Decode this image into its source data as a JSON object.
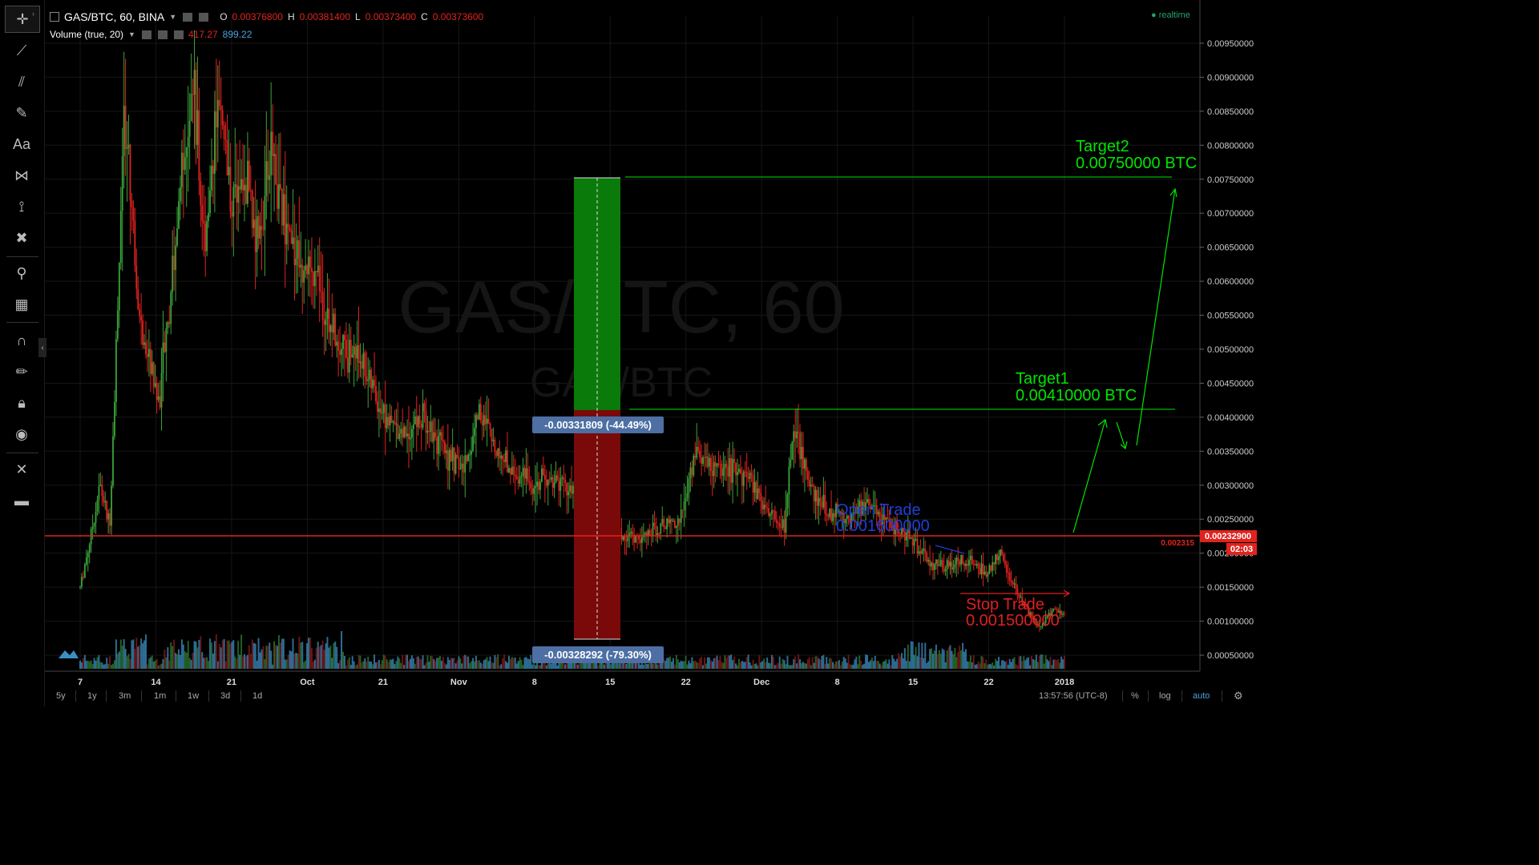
{
  "legend": {
    "symbol": "GAS/BTC, 60, BINA",
    "o_label": "O",
    "o": "0.00376800",
    "h_label": "H",
    "h": "0.00381400",
    "l_label": "L",
    "l": "0.00373400",
    "c_label": "C",
    "c": "0.00373600",
    "volume_label": "Volume (true, 20)",
    "vol1": "417.27",
    "vol2": "899.22",
    "realtime": "realtime"
  },
  "watermark": {
    "big": "GAS/BTC, 60",
    "small": "GAS/BTC"
  },
  "annotations": {
    "target2_label": "Target2",
    "target2_value": "0.00750000 BTC",
    "target1_label": "Target1",
    "target1_value": "0.00410000 BTC",
    "open_label": "Open Trade",
    "open_value": "0.001600000",
    "stop_label": "Stop Trade",
    "stop_value": "0.001500000",
    "measure_top": "-0.00331809 (-44.49%)",
    "measure_bottom": "-0.00328292 (-79.30%)"
  },
  "price_axis": {
    "ticks": [
      "0.00950000",
      "0.00900000",
      "0.00850000",
      "0.00800000",
      "0.00750000",
      "0.00700000",
      "0.00650000",
      "0.00600000",
      "0.00550000",
      "0.00500000",
      "0.00450000",
      "0.00400000",
      "0.00350000",
      "0.00300000",
      "0.00250000",
      "0.00200000",
      "0.00150000",
      "0.00100000",
      "0.00050000"
    ],
    "current_price": "0.00232900",
    "countdown": "02:03",
    "line_value": "0.002315"
  },
  "time_axis": {
    "labels": [
      "7",
      "14",
      "21",
      "Oct",
      "21",
      "Nov",
      "8",
      "15",
      "22",
      "Dec",
      "8",
      "15",
      "22",
      "2018"
    ]
  },
  "bottom_bar": {
    "intervals": [
      "5y",
      "1y",
      "3m",
      "1m",
      "1w",
      "3d",
      "1d"
    ],
    "clock": "13:57:56 (UTC-8)",
    "pct": "%",
    "log": "log",
    "auto": "auto"
  },
  "toolbar": {
    "icons": [
      "crosshair-icon",
      "trend-line-icon",
      "pitchfork-icon",
      "brush-icon",
      "text-icon",
      "pattern-icon",
      "measure-icon",
      "remove-icon",
      "zoom-icon",
      "ruler-icon",
      "magnet-icon",
      "pencil-lock-icon",
      "lock-icon",
      "eye-icon",
      "settings-icon",
      "trash-icon"
    ],
    "text_tool": "Aa"
  },
  "colors": {
    "up": "#3ba33b",
    "down": "#e0231f",
    "accent": "#2962ff",
    "target": "#00e400",
    "open": "#1f3fd6",
    "stop": "#e01f1f",
    "volume": "#3c8fc4",
    "current_line": "#e0231f",
    "grid": "#161616"
  },
  "chart_data": {
    "type": "candlestick",
    "title": "GAS/BTC, 60, BINA",
    "ylim": [
      0.0003,
      0.0099
    ],
    "y_ticks": [
      0.0095,
      0.009,
      0.0085,
      0.008,
      0.0075,
      0.007,
      0.0065,
      0.006,
      0.0055,
      0.005,
      0.0045,
      0.004,
      0.0035,
      0.003,
      0.0025,
      0.002,
      0.0015,
      0.001,
      0.0005
    ],
    "x_labels": [
      "7",
      "14",
      "21",
      "Oct",
      "21",
      "Nov",
      "8",
      "15",
      "22",
      "Dec",
      "8",
      "15",
      "22",
      "2018"
    ],
    "price_path": [
      [
        0,
        0.0015
      ],
      [
        0.01,
        0.0022
      ],
      [
        0.02,
        0.003
      ],
      [
        0.03,
        0.0024
      ],
      [
        0.045,
        0.0085
      ],
      [
        0.06,
        0.0055
      ],
      [
        0.08,
        0.0042
      ],
      [
        0.1,
        0.007
      ],
      [
        0.115,
        0.0092
      ],
      [
        0.125,
        0.0065
      ],
      [
        0.14,
        0.0086
      ],
      [
        0.155,
        0.0072
      ],
      [
        0.17,
        0.0075
      ],
      [
        0.18,
        0.0066
      ],
      [
        0.195,
        0.0079
      ],
      [
        0.21,
        0.0068
      ],
      [
        0.225,
        0.0063
      ],
      [
        0.24,
        0.006
      ],
      [
        0.255,
        0.0054
      ],
      [
        0.27,
        0.005
      ],
      [
        0.285,
        0.0049
      ],
      [
        0.3,
        0.0043
      ],
      [
        0.315,
        0.0039
      ],
      [
        0.33,
        0.0038
      ],
      [
        0.35,
        0.004
      ],
      [
        0.37,
        0.0035
      ],
      [
        0.39,
        0.0032
      ],
      [
        0.405,
        0.0041
      ],
      [
        0.42,
        0.0036
      ],
      [
        0.44,
        0.0032
      ],
      [
        0.46,
        0.003
      ],
      [
        0.48,
        0.0031
      ],
      [
        0.5,
        0.0029
      ],
      [
        0.52,
        0.0025
      ],
      [
        0.535,
        0.002
      ],
      [
        0.55,
        0.0023
      ],
      [
        0.57,
        0.0022
      ],
      [
        0.59,
        0.0024
      ],
      [
        0.61,
        0.0025
      ],
      [
        0.625,
        0.0035
      ],
      [
        0.64,
        0.0033
      ],
      [
        0.66,
        0.0032
      ],
      [
        0.68,
        0.0031
      ],
      [
        0.7,
        0.0026
      ],
      [
        0.715,
        0.0024
      ],
      [
        0.725,
        0.0039
      ],
      [
        0.74,
        0.003
      ],
      [
        0.76,
        0.0026
      ],
      [
        0.78,
        0.0025
      ],
      [
        0.8,
        0.0027
      ],
      [
        0.82,
        0.0024
      ],
      [
        0.84,
        0.0023
      ],
      [
        0.86,
        0.0019
      ],
      [
        0.88,
        0.0018
      ],
      [
        0.9,
        0.0019
      ],
      [
        0.92,
        0.0017
      ],
      [
        0.935,
        0.002
      ],
      [
        0.945,
        0.0016
      ],
      [
        0.96,
        0.0012
      ],
      [
        0.975,
        0.0009
      ],
      [
        0.99,
        0.0012
      ],
      [
        1.0,
        0.0011
      ]
    ],
    "trade_levels": {
      "target2": 0.0075,
      "target1": 0.0041,
      "open": 0.0016,
      "stop": 0.0015,
      "current": 0.002329
    }
  }
}
